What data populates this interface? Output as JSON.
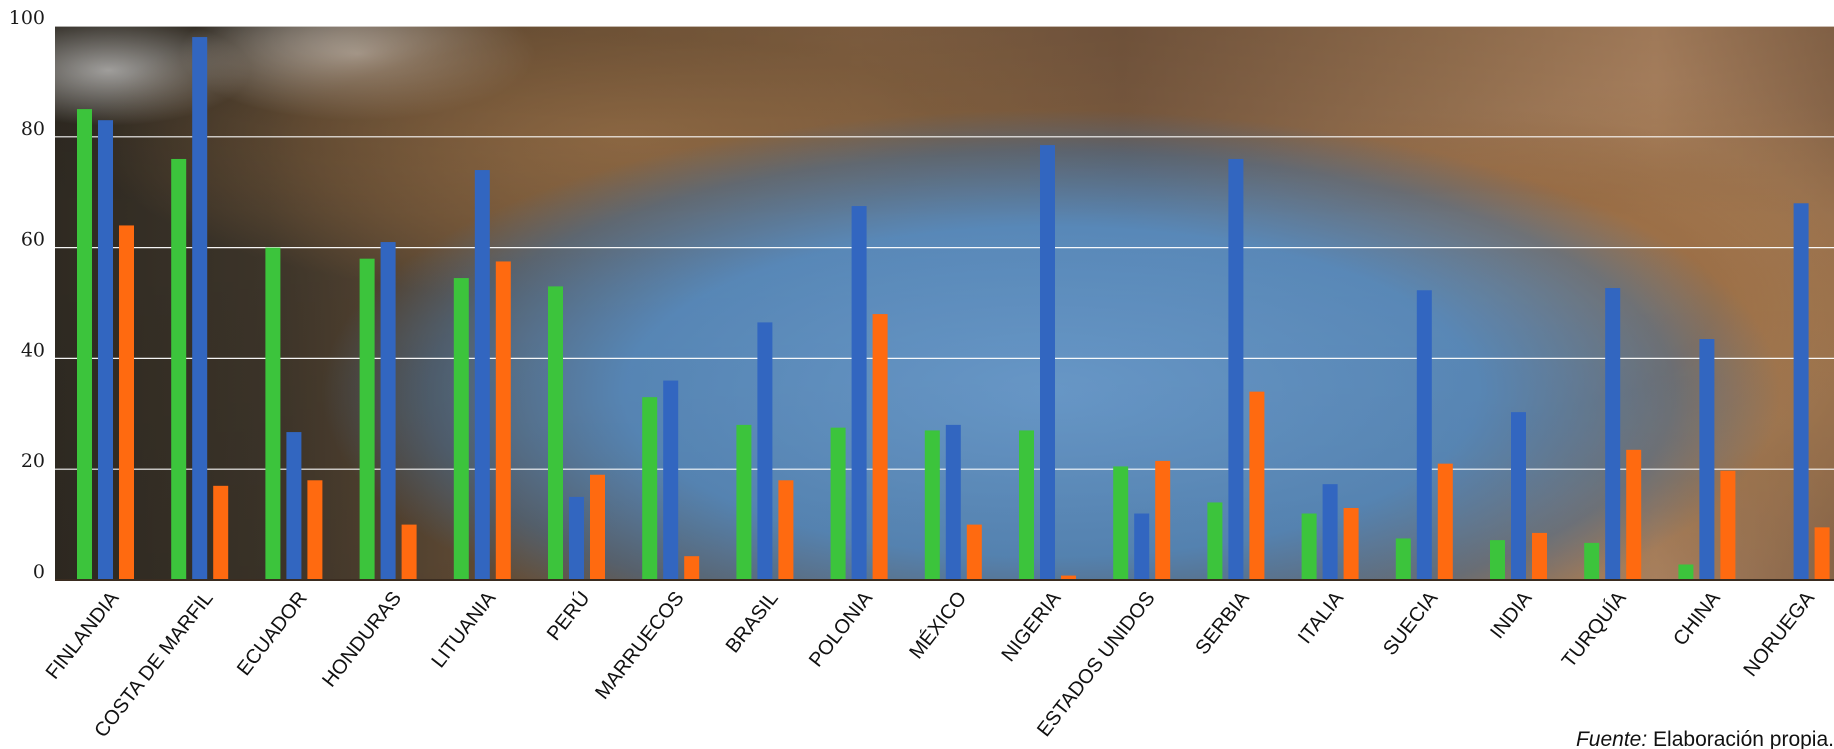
{
  "chart_data": {
    "type": "bar",
    "title": "",
    "xlabel": "",
    "ylabel": "",
    "ylim": [
      0,
      100
    ],
    "yticks": [
      0,
      20,
      40,
      60,
      80,
      100
    ],
    "grid": true,
    "legend": "none",
    "categories": [
      "FINLANDIA",
      "COSTA DE MARFIL",
      "ECUADOR",
      "HONDURAS",
      "LITUANIA",
      "PERÚ",
      "MARRUECOS",
      "BRASIL",
      "POLONIA",
      "MÉXICO",
      "NIGERIA",
      "ESTADOS UNIDOS",
      "SERBIA",
      "ITALIA",
      "SUECIA",
      "INDIA",
      "TURQUÍA",
      "CHINA",
      "NORUEGA"
    ],
    "series": [
      {
        "color": "#3cc43c",
        "values": [
          85,
          76,
          60,
          58,
          54.5,
          53,
          33,
          28,
          27.5,
          27,
          27,
          20.5,
          14,
          12,
          7.5,
          7.2,
          6.7,
          2.8,
          0
        ]
      },
      {
        "color": "#3266c0",
        "values": [
          83,
          98,
          26.7,
          61,
          74,
          15,
          36,
          46.5,
          67.5,
          28,
          78.5,
          12,
          76,
          17.3,
          52.3,
          30.3,
          52.7,
          43.5,
          68
        ]
      },
      {
        "color": "#ff6a10",
        "values": [
          64,
          17,
          18,
          10,
          57.5,
          19,
          4.3,
          18,
          48,
          10,
          0.8,
          21.5,
          34,
          13,
          21,
          8.5,
          23.5,
          19.7,
          9.5
        ]
      }
    ],
    "source_label": "Fuente:",
    "source_text": " Elaboración propia."
  }
}
